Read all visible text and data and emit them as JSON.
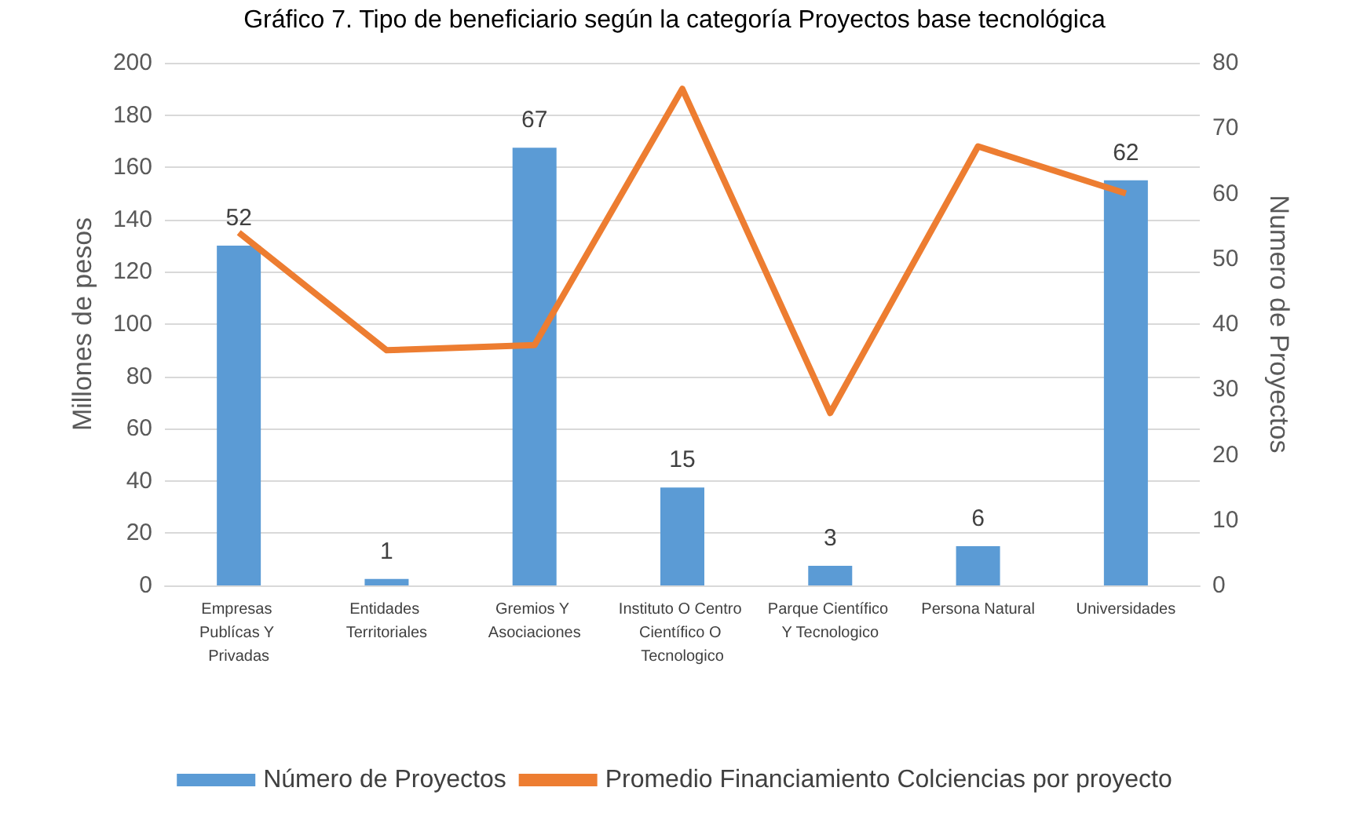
{
  "chart_data": {
    "type": "bar",
    "title": "Gráfico 7. Tipo de beneficiario según la categoría Proyectos base tecnológica",
    "categories": [
      "Empresas Publícas Y Privadas",
      "Entidades Territoriales",
      "Gremios Y Asociaciones",
      "Instituto O Centro Científico O Tecnologico",
      "Parque Científico Y Tecnologico",
      "Persona Natural",
      "Universidades"
    ],
    "series": [
      {
        "name": "Número de Proyectos",
        "axis": "y2",
        "color": "#5b9bd5",
        "values": [
          52,
          1,
          67,
          15,
          3,
          6,
          62
        ],
        "data_labels": true
      },
      {
        "name": "Promedio Financiamiento Colciencias por proyecto",
        "type": "line",
        "color": "#ed7d31",
        "values": [
          135,
          90,
          92,
          190,
          66,
          168,
          150
        ]
      }
    ],
    "ylabel": "Millones de pesos",
    "y2label": "Numero de Proyectos",
    "ylim": [
      0,
      200
    ],
    "yticks": [
      0,
      20,
      40,
      60,
      80,
      100,
      120,
      140,
      160,
      180,
      200
    ],
    "y2lim": [
      0,
      80
    ],
    "y2ticks": [
      0,
      10,
      20,
      30,
      40,
      50,
      60,
      70,
      80
    ],
    "grid": "y",
    "legend": "bottom",
    "marker": "none"
  }
}
